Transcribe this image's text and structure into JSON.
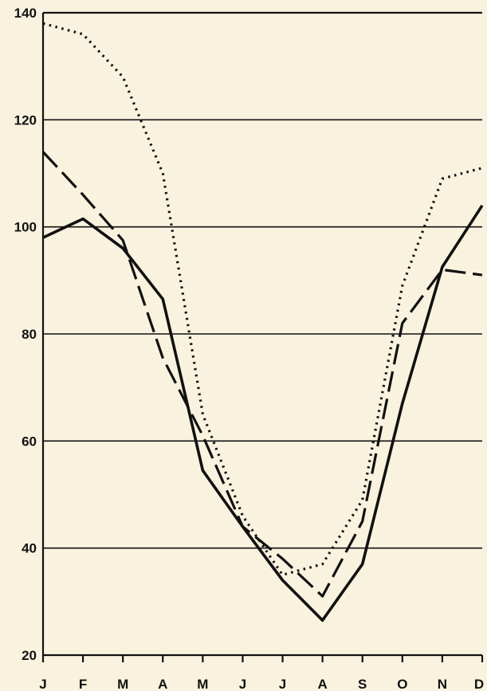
{
  "chart_data": {
    "type": "line",
    "title": "",
    "xlabel": "",
    "ylabel": "",
    "categories": [
      "J",
      "F",
      "M",
      "A",
      "M",
      "J",
      "J",
      "A",
      "S",
      "O",
      "N",
      "D"
    ],
    "ylim": [
      20,
      140
    ],
    "yticks": [
      20,
      40,
      60,
      80,
      100,
      120,
      140
    ],
    "grid": true,
    "series": [
      {
        "style": "solid",
        "color": "#111111",
        "values": [
          98,
          101.5,
          96,
          86.5,
          54.5,
          44,
          34,
          26.5,
          37,
          67,
          92.5,
          104
        ]
      },
      {
        "style": "dashed",
        "color": "#111111",
        "values": [
          114,
          106,
          97.5,
          75.5,
          61,
          44,
          38,
          31,
          45,
          82,
          92,
          91
        ]
      },
      {
        "style": "dotted",
        "color": "#111111",
        "values": [
          138,
          136,
          128,
          110,
          65,
          46,
          35,
          37,
          49,
          89,
          109,
          111
        ]
      }
    ]
  }
}
